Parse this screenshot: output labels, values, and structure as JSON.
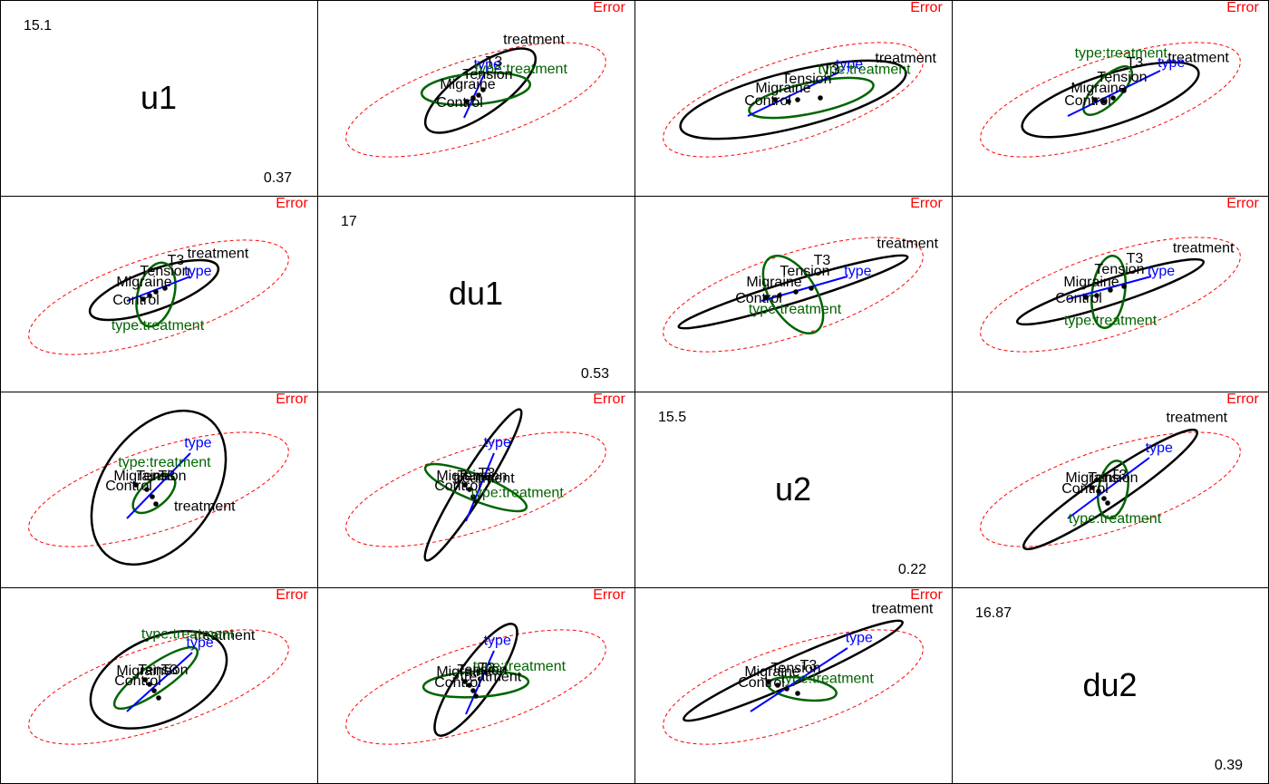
{
  "chart_data": {
    "type": "hepairs",
    "variables": [
      {
        "name": "u1",
        "max": "15.1",
        "min": "0.37"
      },
      {
        "name": "du1",
        "max": "17",
        "min": "0.53"
      },
      {
        "name": "u2",
        "max": "15.5",
        "min": "0.22"
      },
      {
        "name": "du2",
        "max": "16.87",
        "min": "0.39"
      }
    ],
    "effects": [
      {
        "name": "Error",
        "color": "#ff0000",
        "style": "dashed"
      },
      {
        "name": "treatment",
        "color": "#000000",
        "style": "solid"
      },
      {
        "name": "type",
        "color": "#0000ff",
        "style": "solid"
      },
      {
        "name": "type:treatment",
        "color": "#006400",
        "style": "solid"
      }
    ],
    "group_labels": [
      "Control",
      "Migraine",
      "Tension",
      "T3"
    ],
    "panels": [
      {
        "row": 0,
        "col": 1,
        "E": [
          525,
          110,
          150,
          45,
          -18
        ],
        "T": [
          530,
          100,
          72,
          26,
          -35
        ],
        "I": [
          525,
          98,
          60,
          17,
          -5
        ],
        "type": [
          [
            512,
            130
          ],
          [
            535,
            80
          ]
        ],
        "pts": [
          [
            515,
            112
          ],
          [
            522,
            108
          ],
          [
            528,
            105
          ],
          [
            533,
            99
          ]
        ]
      },
      {
        "row": 0,
        "col": 2,
        "E": [
          875,
          110,
          150,
          45,
          -18
        ],
        "T": [
          875,
          110,
          128,
          31,
          -14
        ],
        "I": [
          895,
          108,
          70,
          17,
          -12
        ],
        "type": [
          [
            825,
            128
          ],
          [
            925,
            80
          ]
        ],
        "pts": [
          [
            855,
            110
          ],
          [
            870,
            112
          ],
          [
            880,
            110
          ],
          [
            905,
            108
          ]
        ]
      },
      {
        "row": 0,
        "col": 3,
        "E": [
          1225,
          110,
          150,
          45,
          -18
        ],
        "T": [
          1225,
          110,
          102,
          28,
          -18
        ],
        "I": [
          1222,
          100,
          35,
          14,
          -45
        ],
        "type": [
          [
            1178,
            128
          ],
          [
            1280,
            78
          ]
        ],
        "pts": [
          [
            1208,
            110
          ],
          [
            1218,
            112
          ],
          [
            1228,
            108
          ],
          [
            1240,
            100
          ]
        ]
      },
      {
        "row": 1,
        "col": 0,
        "E": [
          175,
          328,
          150,
          45,
          -18
        ],
        "T": [
          170,
          320,
          75,
          22,
          -20
        ],
        "I": [
          172,
          325,
          20,
          36,
          15
        ],
        "type": [
          [
            140,
            332
          ],
          [
            210,
            305
          ]
        ],
        "pts": [
          [
            158,
            330
          ],
          [
            165,
            326
          ],
          [
            172,
            322
          ],
          [
            182,
            318
          ]
        ]
      },
      {
        "row": 1,
        "col": 2,
        "E": [
          875,
          325,
          150,
          45,
          -18
        ],
        "T": [
          875,
          322,
          132,
          12,
          -17
        ],
        "I": [
          875,
          325,
          25,
          48,
          -32
        ],
        "type": [
          [
            840,
            332
          ],
          [
            935,
            305
          ]
        ],
        "pts": [
          [
            845,
            328
          ],
          [
            860,
            326
          ],
          [
            878,
            322
          ],
          [
            895,
            318
          ]
        ]
      },
      {
        "row": 1,
        "col": 3,
        "E": [
          1225,
          325,
          150,
          45,
          -18
        ],
        "T": [
          1225,
          322,
          108,
          14,
          -18
        ],
        "I": [
          1223,
          322,
          18,
          40,
          8
        ],
        "type": [
          [
            1178,
            330
          ],
          [
            1270,
            305
          ]
        ],
        "pts": [
          [
            1198,
            328
          ],
          [
            1210,
            326
          ],
          [
            1225,
            320
          ],
          [
            1240,
            316
          ]
        ]
      },
      {
        "row": 2,
        "col": 0,
        "E": [
          175,
          540,
          150,
          45,
          -18
        ],
        "T": [
          175,
          538,
          62,
          94,
          35
        ],
        "I": [
          170,
          545,
          28,
          14,
          -40
        ],
        "type": [
          [
            140,
            572
          ],
          [
            210,
            500
          ]
        ],
        "pts": [
          [
            150,
            535
          ],
          [
            162,
            540
          ],
          [
            168,
            548
          ],
          [
            172,
            556
          ]
        ]
      },
      {
        "row": 2,
        "col": 1,
        "E": [
          525,
          540,
          150,
          45,
          -18
        ],
        "T": [
          522,
          535,
          14,
          98,
          32
        ],
        "I": [
          525,
          538,
          60,
          14,
          22
        ],
        "type": [
          [
            514,
            575
          ],
          [
            545,
            500
          ]
        ],
        "pts": [
          [
            513,
            535
          ],
          [
            518,
            540
          ],
          [
            522,
            548
          ],
          [
            525,
            553
          ]
        ]
      },
      {
        "row": 2,
        "col": 3,
        "E": [
          1225,
          540,
          150,
          45,
          -18
        ],
        "T": [
          1225,
          540,
          115,
          17,
          -34
        ],
        "I": [
          1228,
          540,
          16,
          32,
          10
        ],
        "type": [
          [
            1178,
            572
          ],
          [
            1268,
            505
          ]
        ],
        "pts": [
          [
            1205,
            538
          ],
          [
            1212,
            542
          ],
          [
            1218,
            550
          ],
          [
            1222,
            555
          ]
        ]
      },
      {
        "row": 3,
        "col": 0,
        "E": [
          175,
          758,
          150,
          45,
          -18
        ],
        "T": [
          175,
          750,
          80,
          46,
          -25
        ],
        "I": [
          172,
          748,
          55,
          15,
          -35
        ],
        "type": [
          [
            140,
            785
          ],
          [
            212,
            720
          ]
        ],
        "pts": [
          [
            160,
            750
          ],
          [
            165,
            755
          ],
          [
            170,
            762
          ],
          [
            175,
            770
          ]
        ]
      },
      {
        "row": 3,
        "col": 1,
        "E": [
          525,
          758,
          150,
          45,
          -18
        ],
        "T": [
          525,
          750,
          20,
          74,
          35
        ],
        "I": [
          525,
          755,
          58,
          14,
          -3
        ],
        "type": [
          [
            514,
            788
          ],
          [
            545,
            718
          ]
        ],
        "pts": [
          [
            513,
            752
          ],
          [
            518,
            756
          ],
          [
            522,
            762
          ],
          [
            525,
            768
          ]
        ]
      },
      {
        "row": 3,
        "col": 2,
        "E": [
          875,
          758,
          150,
          45,
          -18
        ],
        "T": [
          875,
          740,
          132,
          14,
          -24
        ],
        "I": [
          885,
          760,
          38,
          12,
          8
        ],
        "type": [
          [
            828,
            785
          ],
          [
            935,
            715
          ]
        ],
        "pts": [
          [
            848,
            752
          ],
          [
            858,
            756
          ],
          [
            868,
            760
          ],
          [
            880,
            765
          ]
        ]
      }
    ]
  }
}
